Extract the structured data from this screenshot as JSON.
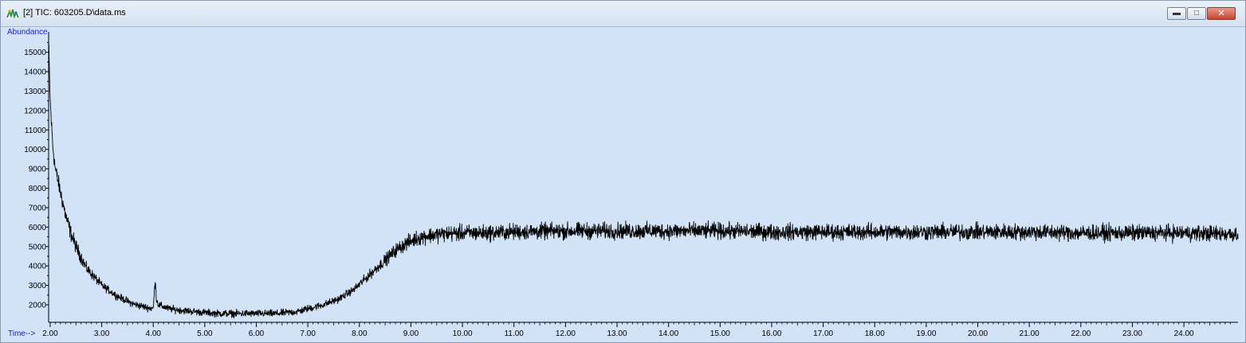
{
  "window": {
    "title": "[2] TIC: 603205.D\\data.ms",
    "icon": "chromatogram-icon",
    "buttons": [
      "minimize",
      "restore",
      "close"
    ]
  },
  "chart_data": {
    "type": "line",
    "ylabel": "Abundance",
    "xlabel": "Time-->",
    "xlim": [
      1.97,
      25.05
    ],
    "ylim": [
      1100,
      16050
    ],
    "x_ticks": [
      "2.00",
      "3.00",
      "4.00",
      "5.00",
      "6.00",
      "7.00",
      "8.00",
      "9.00",
      "10.00",
      "11.00",
      "12.00",
      "13.00",
      "14.00",
      "15.00",
      "16.00",
      "17.00",
      "18.00",
      "19.00",
      "20.00",
      "21.00",
      "22.00",
      "23.00",
      "24.00"
    ],
    "y_ticks": [
      "2000",
      "3000",
      "4000",
      "5000",
      "6000",
      "7000",
      "8000",
      "9000",
      "10000",
      "11000",
      "12000",
      "13000",
      "14000",
      "15000"
    ],
    "grid": false,
    "series": [
      {
        "color": "#000000",
        "x": [
          1.97,
          2.0,
          2.05,
          2.1,
          2.2,
          2.3,
          2.4,
          2.5,
          2.7,
          3.0,
          3.3,
          3.6,
          3.9,
          4.0,
          4.04,
          4.06,
          4.1,
          4.3,
          4.6,
          5.0,
          5.3,
          5.6,
          6.0,
          6.4,
          6.8,
          7.0,
          7.3,
          7.6,
          7.9,
          8.1,
          8.3,
          8.5,
          8.7,
          8.9,
          9.1,
          9.3,
          9.6,
          10.0,
          10.5,
          11.0,
          12.0,
          13.0,
          14.0,
          15.0,
          16.0,
          17.0,
          18.0,
          19.0,
          20.0,
          21.0,
          22.0,
          23.0,
          24.0,
          25.0
        ],
        "y": [
          15500,
          12500,
          10200,
          9000,
          7800,
          6600,
          5700,
          5000,
          3900,
          3000,
          2450,
          2050,
          1850,
          1800,
          3400,
          2300,
          2000,
          1800,
          1700,
          1600,
          1550,
          1550,
          1550,
          1550,
          1650,
          1800,
          2000,
          2300,
          2800,
          3300,
          3800,
          4300,
          4800,
          5150,
          5400,
          5550,
          5650,
          5700,
          5700,
          5750,
          5800,
          5800,
          5800,
          5800,
          5750,
          5750,
          5750,
          5750,
          5750,
          5750,
          5700,
          5700,
          5700,
          5650
        ],
        "noise_amplitude": 420
      }
    ]
  }
}
